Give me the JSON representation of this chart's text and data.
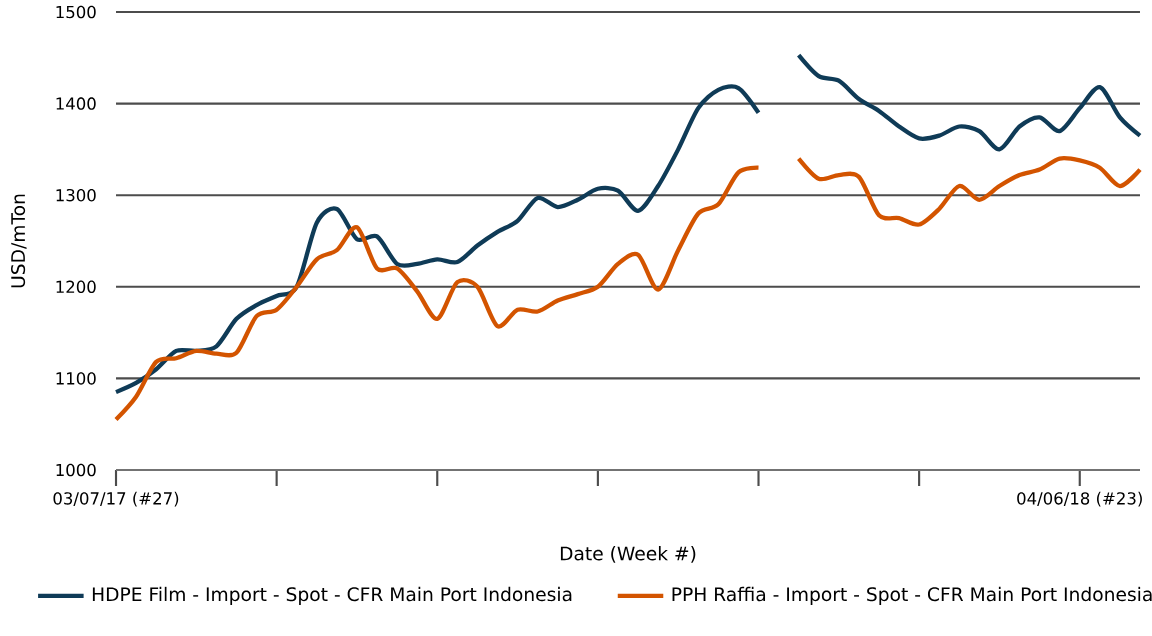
{
  "chart_data": {
    "type": "line",
    "xlabel": "Date (Week #)",
    "ylabel": "USD/mTon",
    "x": [
      "2017-07-03",
      "2017-07-10",
      "2017-07-17",
      "2017-07-24",
      "2017-07-31",
      "2017-08-07",
      "2017-08-14",
      "2017-08-21",
      "2017-08-28",
      "2017-09-04",
      "2017-09-11",
      "2017-09-18",
      "2017-09-25",
      "2017-10-02",
      "2017-10-09",
      "2017-10-16",
      "2017-10-23",
      "2017-10-30",
      "2017-11-06",
      "2017-11-13",
      "2017-11-20",
      "2017-11-27",
      "2017-12-04",
      "2017-12-11",
      "2017-12-18",
      "2017-12-25",
      "2018-01-01",
      "2018-01-08",
      "2018-01-15",
      "2018-01-22",
      "2018-01-29",
      "2018-02-05",
      "2018-02-12",
      "2018-02-19",
      "2018-02-26",
      "2018-03-05",
      "2018-03-12",
      "2018-03-19",
      "2018-03-26",
      "2018-04-02",
      "2018-04-09",
      "2018-04-16",
      "2018-04-23",
      "2018-04-30",
      "2018-05-07",
      "2018-05-14",
      "2018-05-21",
      "2018-05-28",
      "2018-06-04",
      "2018-06-11",
      "2018-06-18",
      "2018-06-25"
    ],
    "series": [
      {
        "name": "HDPE Film - Import - Spot - CFR Main Port Indonesia",
        "color": "#0f3b57",
        "values": [
          1085,
          1095,
          1110,
          1130,
          1130,
          1135,
          1165,
          1180,
          1190,
          1200,
          1270,
          1285,
          1252,
          1255,
          1225,
          1225,
          1230,
          1227,
          1245,
          1260,
          1272,
          1297,
          1287,
          1295,
          1307,
          1305,
          1283,
          1310,
          1350,
          1395,
          1415,
          1417,
          1390,
          null,
          1453,
          1430,
          1425,
          1405,
          1392,
          1375,
          1362,
          1365,
          1375,
          1370,
          1350,
          1375,
          1385,
          1370,
          1395,
          1418,
          1385,
          1365
        ]
      },
      {
        "name": "PPH Raffia - Import - Spot - CFR Main Port Indonesia",
        "color": "#d35400",
        "values": [
          1055,
          1080,
          1118,
          1122,
          1130,
          1127,
          1128,
          1168,
          1175,
          1200,
          1230,
          1240,
          1265,
          1220,
          1220,
          1195,
          1165,
          1205,
          1200,
          1157,
          1175,
          1173,
          1185,
          1192,
          1200,
          1225,
          1235,
          1197,
          1240,
          1280,
          1290,
          1325,
          1330,
          null,
          1340,
          1318,
          1322,
          1320,
          1278,
          1275,
          1268,
          1285,
          1310,
          1295,
          1310,
          1322,
          1328,
          1340,
          1338,
          1330,
          1310,
          1328
        ]
      }
    ],
    "xlim": [
      "2017-07-03",
      "2018-06-25"
    ],
    "xticks": [
      {
        "value": "2017-07-03",
        "label": "03/07/17 (#27)"
      },
      {
        "value": "2017-08-28",
        "label": null
      },
      {
        "value": "2017-10-23",
        "label": null
      },
      {
        "value": "2017-12-18",
        "label": null
      },
      {
        "value": "2018-02-12",
        "label": null
      },
      {
        "value": "2018-04-09",
        "label": null
      },
      {
        "value": "2018-06-04",
        "label": "04/06/18 (#23)"
      }
    ],
    "ylim": [
      1000,
      1500
    ],
    "yticks": [
      1000,
      1100,
      1200,
      1300,
      1400,
      1500
    ],
    "grid": "y",
    "legend": "bottom",
    "marker": "none",
    "line_style": "solid"
  }
}
